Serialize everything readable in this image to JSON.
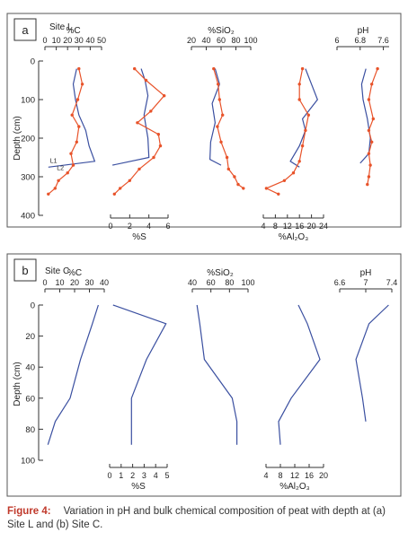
{
  "caption": {
    "label": "Figure 4:",
    "text": "Variation in pH and bulk chemical composition of peat with depth at (a) Site L and (b) Site C."
  },
  "colors": {
    "series_L1": "#3a4fa0",
    "series_L2": "#e8532a",
    "site_c": "#3a4fa0",
    "axis": "#333333"
  },
  "chart_data": [
    {
      "type": "line",
      "panel": "a",
      "site": "Site L",
      "ylabel": "Depth (cm)",
      "ylim": [
        0,
        400
      ],
      "yticks": [
        0,
        100,
        200,
        300,
        400
      ],
      "series_labels": [
        "L1",
        "L2"
      ],
      "subplots": [
        {
          "key": "C",
          "label": "%C",
          "axis_pos": "top",
          "xlim": [
            0,
            50
          ],
          "ticks": [
            0,
            10,
            20,
            30,
            40,
            50
          ],
          "series": [
            {
              "name": "L1",
              "points": [
                [
                  28,
                  20
                ],
                [
                  25,
                  60
                ],
                [
                  27,
                  100
                ],
                [
                  30,
                  140
                ],
                [
                  36,
                  180
                ],
                [
                  39,
                  220
                ],
                [
                  44,
                  260
                ],
                [
                  3,
                  275
                ]
              ]
            },
            {
              "name": "L2",
              "points": [
                [
                  30,
                  20
                ],
                [
                  33,
                  60
                ],
                [
                  29,
                  100
                ],
                [
                  24,
                  140
                ],
                [
                  30,
                  170
                ],
                [
                  28,
                  210
                ],
                [
                  23,
                  240
                ],
                [
                  25,
                  270
                ],
                [
                  20,
                  290
                ],
                [
                  12,
                  310
                ],
                [
                  9,
                  330
                ],
                [
                  3,
                  345
                ]
              ]
            }
          ]
        },
        {
          "key": "S",
          "label": "%S",
          "axis_pos": "bottom",
          "xlim": [
            0,
            6
          ],
          "ticks": [
            0,
            2,
            4,
            6
          ],
          "series": [
            {
              "name": "L1",
              "points": [
                [
                  3.2,
                  20
                ],
                [
                  3.6,
                  50
                ],
                [
                  3.9,
                  90
                ],
                [
                  3.5,
                  140
                ],
                [
                  3.9,
                  200
                ],
                [
                  4.0,
                  250
                ],
                [
                  0.2,
                  270
                ]
              ]
            },
            {
              "name": "L2",
              "points": [
                [
                  2.5,
                  20
                ],
                [
                  3.7,
                  50
                ],
                [
                  5.6,
                  90
                ],
                [
                  4.2,
                  130
                ],
                [
                  2.8,
                  160
                ],
                [
                  5.0,
                  190
                ],
                [
                  5.2,
                  220
                ],
                [
                  4.5,
                  250
                ],
                [
                  3.0,
                  280
                ],
                [
                  2.0,
                  310
                ],
                [
                  1.0,
                  330
                ],
                [
                  0.4,
                  345
                ]
              ]
            }
          ]
        },
        {
          "key": "SiO2",
          "label": "%SiO₂",
          "axis_pos": "top",
          "xlim": [
            20,
            100
          ],
          "ticks": [
            20,
            40,
            60,
            80,
            100
          ],
          "series": [
            {
              "name": "L1",
              "points": [
                [
                  52,
                  20
                ],
                [
                  58,
                  60
                ],
                [
                  48,
                  110
                ],
                [
                  52,
                  160
                ],
                [
                  46,
                  210
                ],
                [
                  45,
                  255
                ],
                [
                  60,
                  270
                ]
              ]
            },
            {
              "name": "L2",
              "points": [
                [
                  50,
                  20
                ],
                [
                  56,
                  60
                ],
                [
                  58,
                  100
                ],
                [
                  62,
                  140
                ],
                [
                  55,
                  170
                ],
                [
                  60,
                  210
                ],
                [
                  68,
                  250
                ],
                [
                  70,
                  280
                ],
                [
                  78,
                  300
                ],
                [
                  83,
                  320
                ],
                [
                  90,
                  330
                ]
              ]
            }
          ]
        },
        {
          "key": "Al2O3",
          "label": "%Al₂O₃",
          "axis_pos": "bottom",
          "xlim": [
            4,
            24
          ],
          "ticks": [
            4,
            8,
            12,
            16,
            20,
            24
          ],
          "series": [
            {
              "name": "L1",
              "points": [
                [
                  18,
                  20
                ],
                [
                  20,
                  60
                ],
                [
                  22,
                  100
                ],
                [
                  17,
                  150
                ],
                [
                  18,
                  180
                ],
                [
                  16,
                  220
                ],
                [
                  13,
                  260
                ],
                [
                  16,
                  275
                ]
              ]
            },
            {
              "name": "L2",
              "points": [
                [
                  17,
                  20
                ],
                [
                  16,
                  60
                ],
                [
                  16,
                  100
                ],
                [
                  19,
                  140
                ],
                [
                  18,
                  180
                ],
                [
                  17,
                  220
                ],
                [
                  16,
                  260
                ],
                [
                  14,
                  290
                ],
                [
                  11,
                  310
                ],
                [
                  5,
                  330
                ],
                [
                  9,
                  345
                ]
              ]
            }
          ]
        },
        {
          "key": "pH",
          "label": "pH",
          "axis_pos": "top",
          "xlim": [
            6,
            7.8
          ],
          "ticks": [
            6,
            6.8,
            7.6
          ],
          "ticklabels": [
            "6",
            "6.8",
            "7.6"
          ],
          "series": [
            {
              "name": "L1",
              "points": [
                [
                  7.0,
                  20
                ],
                [
                  6.85,
                  60
                ],
                [
                  6.9,
                  100
                ],
                [
                  7.05,
                  150
                ],
                [
                  7.15,
                  200
                ],
                [
                  7.1,
                  240
                ],
                [
                  6.8,
                  265
                ]
              ]
            },
            {
              "name": "L2",
              "points": [
                [
                  7.4,
                  20
                ],
                [
                  7.2,
                  60
                ],
                [
                  7.1,
                  100
                ],
                [
                  7.25,
                  150
                ],
                [
                  7.1,
                  180
                ],
                [
                  7.2,
                  210
                ],
                [
                  7.1,
                  240
                ],
                [
                  7.15,
                  270
                ],
                [
                  7.1,
                  300
                ],
                [
                  7.05,
                  320
                ]
              ]
            }
          ]
        }
      ]
    },
    {
      "type": "line",
      "panel": "b",
      "site": "Site C",
      "ylabel": "Depth (cm)",
      "ylim": [
        0,
        100
      ],
      "yticks": [
        0,
        20,
        40,
        60,
        80,
        100
      ],
      "subplots": [
        {
          "key": "C",
          "label": "%C",
          "axis_pos": "top",
          "xlim": [
            0,
            40
          ],
          "ticks": [
            0,
            10,
            20,
            30,
            40
          ],
          "series": [
            {
              "name": "",
              "points": [
                [
                  36,
                  0
                ],
                [
                  32,
                  12
                ],
                [
                  24,
                  35
                ],
                [
                  17,
                  60
                ],
                [
                  7,
                  75
                ],
                [
                  2,
                  90
                ]
              ]
            }
          ]
        },
        {
          "key": "S",
          "label": "%S",
          "axis_pos": "bottom",
          "xlim": [
            0,
            5
          ],
          "ticks": [
            0,
            1,
            2,
            3,
            4,
            5
          ],
          "series": [
            {
              "name": "",
              "points": [
                [
                  0.3,
                  0
                ],
                [
                  4.9,
                  12
                ],
                [
                  3.2,
                  35
                ],
                [
                  1.9,
                  60
                ],
                [
                  1.9,
                  75
                ],
                [
                  1.9,
                  90
                ]
              ]
            }
          ]
        },
        {
          "key": "SiO2",
          "label": "%SiO₂",
          "axis_pos": "top",
          "xlim": [
            40,
            100
          ],
          "ticks": [
            40,
            60,
            80,
            100
          ],
          "series": [
            {
              "name": "",
              "points": [
                [
                  45,
                  0
                ],
                [
                  48,
                  12
                ],
                [
                  53,
                  35
                ],
                [
                  83,
                  60
                ],
                [
                  88,
                  75
                ],
                [
                  88,
                  90
                ]
              ]
            }
          ]
        },
        {
          "key": "Al2O3",
          "label": "%Al₂O₃",
          "axis_pos": "bottom",
          "xlim": [
            4,
            20
          ],
          "ticks": [
            4,
            8,
            12,
            16,
            20
          ],
          "series": [
            {
              "name": "",
              "points": [
                [
                  13,
                  0
                ],
                [
                  15.5,
                  12
                ],
                [
                  19,
                  35
                ],
                [
                  11,
                  60
                ],
                [
                  7.5,
                  75
                ],
                [
                  8,
                  90
                ]
              ]
            }
          ]
        },
        {
          "key": "pH",
          "label": "pH",
          "axis_pos": "top",
          "xlim": [
            6.6,
            7.4
          ],
          "ticks": [
            6.6,
            7,
            7.4
          ],
          "ticklabels": [
            "6.6",
            "7",
            "7.4"
          ],
          "series": [
            {
              "name": "",
              "points": [
                [
                  7.35,
                  0
                ],
                [
                  7.05,
                  12
                ],
                [
                  6.85,
                  35
                ],
                [
                  6.95,
                  60
                ],
                [
                  7.0,
                  75
                ]
              ]
            }
          ]
        }
      ]
    }
  ]
}
